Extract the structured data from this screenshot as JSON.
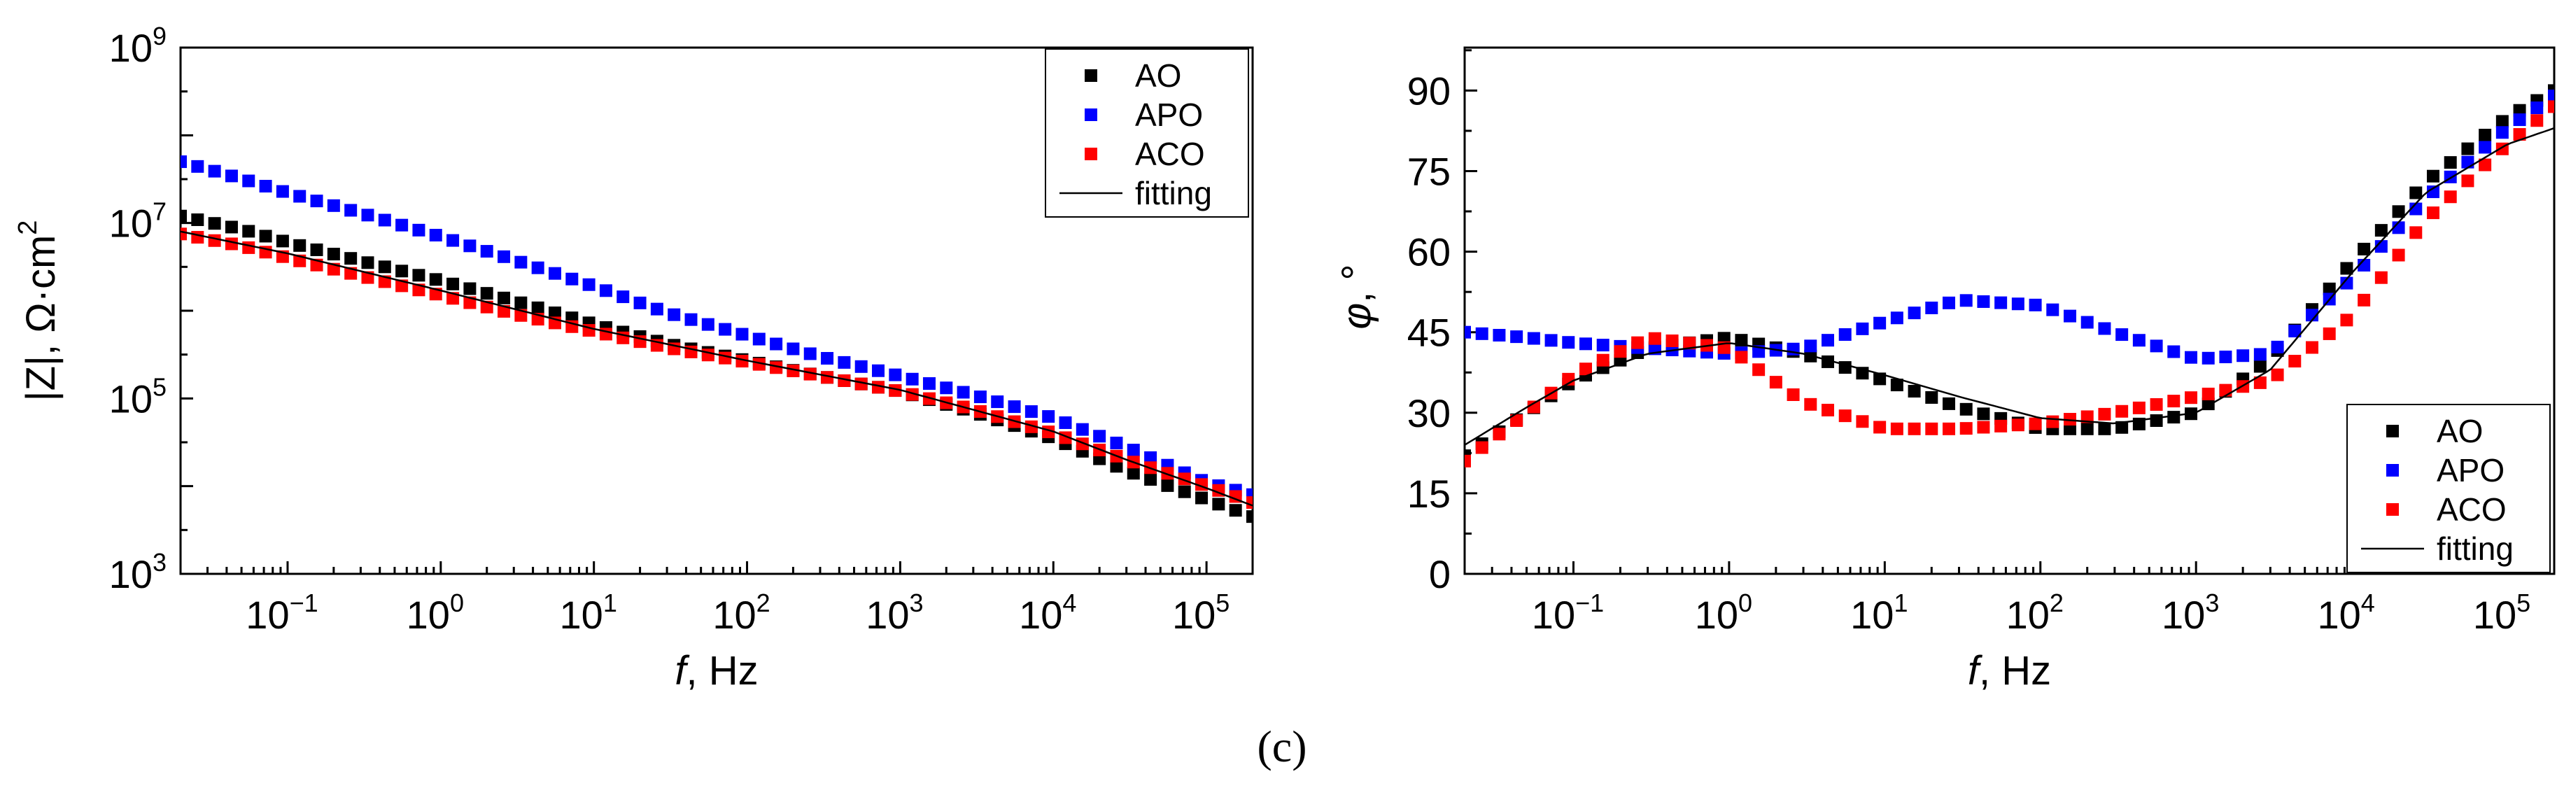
{
  "caption": "(c)",
  "colors": {
    "AO": "#000000",
    "APO": "#0000ff",
    "ACO": "#ff0000",
    "fitting": "#000000"
  },
  "chart_data": [
    {
      "type": "scatter",
      "xscale": "log",
      "yscale": "log",
      "xlim": [
        0.02,
        200000
      ],
      "ylim": [
        1000,
        1000000000
      ],
      "xlabel": {
        "var": "f",
        "rest": ", Hz"
      },
      "ylabel": {
        "text": "|Z|, Ω·cm",
        "sup": "2"
      },
      "xticks": [
        {
          "base": "10",
          "exp": "−1",
          "value": 0.1
        },
        {
          "base": "10",
          "exp": "0",
          "value": 1
        },
        {
          "base": "10",
          "exp": "1",
          "value": 10
        },
        {
          "base": "10",
          "exp": "2",
          "value": 100
        },
        {
          "base": "10",
          "exp": "3",
          "value": 1000
        },
        {
          "base": "10",
          "exp": "4",
          "value": 10000
        },
        {
          "base": "10",
          "exp": "5",
          "value": 100000
        }
      ],
      "yticks": [
        {
          "base": "10",
          "exp": "3",
          "value": 1000
        },
        {
          "base": "10",
          "exp": "5",
          "value": 100000
        },
        {
          "base": "10",
          "exp": "7",
          "value": 10000000
        },
        {
          "base": "10",
          "exp": "9",
          "value": 1000000000
        }
      ],
      "legend": {
        "position": "top-right",
        "entries": [
          "AO",
          "APO",
          "ACO",
          "fitting"
        ]
      },
      "series": [
        {
          "name": "AO",
          "marker": "square",
          "x": [
            0.02,
            0.05,
            0.1,
            0.3,
            1,
            3,
            10,
            30,
            100,
            300,
            1000,
            3000,
            10000,
            30000,
            100000,
            200000
          ],
          "y": [
            12000000,
            8500000,
            6000000,
            3700000,
            2200000,
            1300000,
            700000,
            420000,
            270000,
            180000,
            120000,
            70000,
            35000,
            15000,
            7000,
            4500
          ]
        },
        {
          "name": "APO",
          "marker": "square",
          "x": [
            0.02,
            0.05,
            0.1,
            0.3,
            1,
            3,
            10,
            30,
            100,
            300,
            1000,
            3000,
            10000,
            30000,
            100000,
            200000
          ],
          "y": [
            50000000,
            32000000,
            22000000,
            13000000,
            7000000,
            3800000,
            1900000,
            950000,
            520000,
            300000,
            180000,
            110000,
            60000,
            28000,
            11000,
            8000
          ]
        },
        {
          "name": "ACO",
          "marker": "square",
          "x": [
            0.02,
            0.05,
            0.1,
            0.3,
            1,
            3,
            10,
            30,
            100,
            300,
            1000,
            3000,
            10000,
            30000,
            100000,
            200000
          ],
          "y": [
            7500000,
            5500000,
            4000000,
            2500000,
            1500000,
            920000,
            580000,
            380000,
            260000,
            180000,
            120000,
            75000,
            40000,
            20000,
            10000,
            6500
          ]
        },
        {
          "name": "fitting",
          "marker": "line",
          "style": "thin-line",
          "x": [
            0.02,
            0.1,
            1,
            10,
            100,
            1000,
            10000,
            30000,
            100000,
            200000
          ],
          "y": [
            8000000,
            4500000,
            1700000,
            620000,
            270000,
            125000,
            42000,
            20000,
            9500,
            6000
          ]
        }
      ]
    },
    {
      "type": "scatter",
      "xscale": "log",
      "yscale": "linear",
      "xlim": [
        0.02,
        200000
      ],
      "ylim": [
        0,
        98
      ],
      "xlabel": {
        "var": "f",
        "rest": ", Hz"
      },
      "ylabel": {
        "var": "φ",
        "rest": ", °"
      },
      "xticks": [
        {
          "base": "10",
          "exp": "−1",
          "value": 0.1
        },
        {
          "base": "10",
          "exp": "0",
          "value": 1
        },
        {
          "base": "10",
          "exp": "1",
          "value": 10
        },
        {
          "base": "10",
          "exp": "2",
          "value": 100
        },
        {
          "base": "10",
          "exp": "3",
          "value": 1000
        },
        {
          "base": "10",
          "exp": "4",
          "value": 10000
        },
        {
          "base": "10",
          "exp": "5",
          "value": 100000
        }
      ],
      "yticks": [
        0,
        15,
        30,
        45,
        60,
        75,
        90
      ],
      "legend": {
        "position": "bottom-right",
        "entries": [
          "AO",
          "APO",
          "ACO",
          "fitting"
        ]
      },
      "series": [
        {
          "name": "AO",
          "marker": "square",
          "x": [
            0.02,
            0.05,
            0.1,
            0.3,
            1,
            3,
            10,
            30,
            100,
            300,
            1000,
            3000,
            10000,
            30000,
            100000,
            200000
          ],
          "y": [
            22,
            30,
            36,
            42,
            44,
            41,
            36,
            31,
            27,
            27,
            30,
            40,
            58,
            73,
            85,
            90
          ]
        },
        {
          "name": "APO",
          "marker": "square",
          "x": [
            0.02,
            0.05,
            0.1,
            0.3,
            1,
            3,
            10,
            30,
            100,
            300,
            1000,
            3000,
            10000,
            30000,
            100000,
            200000
          ],
          "y": [
            45,
            44,
            43,
            42,
            41,
            42,
            47,
            51,
            50,
            45,
            40,
            41,
            55,
            70,
            83,
            89
          ]
        },
        {
          "name": "ACO",
          "marker": "square",
          "x": [
            0.02,
            0.05,
            0.1,
            0.3,
            1,
            3,
            10,
            30,
            100,
            300,
            1000,
            3000,
            10000,
            30000,
            100000,
            200000
          ],
          "y": [
            21,
            30,
            37,
            44,
            42,
            32,
            27,
            27,
            28,
            30,
            33,
            36,
            48,
            66,
            80,
            87
          ]
        },
        {
          "name": "fitting",
          "marker": "line",
          "style": "thin-line",
          "x": [
            0.02,
            0.05,
            0.1,
            0.3,
            1,
            3,
            10,
            30,
            100,
            300,
            1000,
            3000,
            10000,
            30000,
            100000,
            200000
          ],
          "y": [
            24,
            31,
            36,
            41,
            43,
            41,
            37,
            33,
            29,
            28,
            30,
            38,
            56,
            71,
            80,
            83
          ]
        }
      ]
    }
  ]
}
